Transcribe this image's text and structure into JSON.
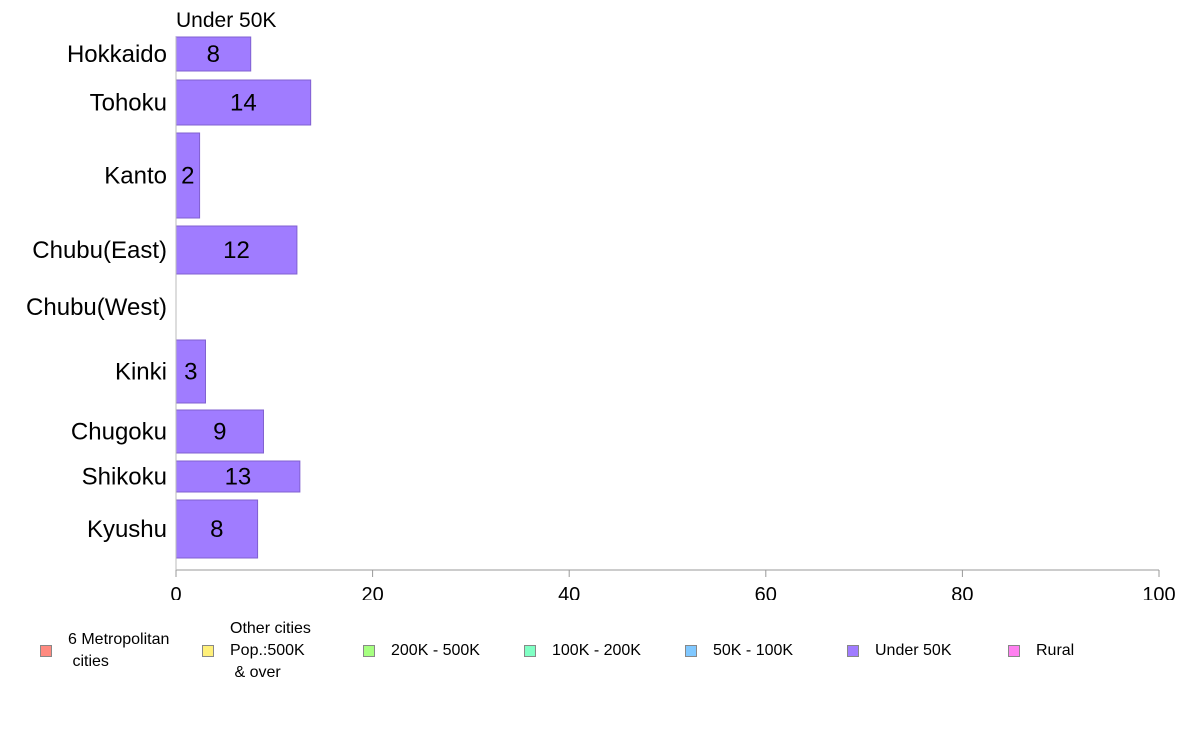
{
  "chart_data": {
    "type": "bar",
    "orientation": "horizontal",
    "series_title": "Under 50K",
    "categories": [
      "Hokkaido",
      "Tohoku",
      "Kanto",
      "Chubu(East)",
      "Chubu(West)",
      "Kinki",
      "Chugoku",
      "Shikoku",
      "Kyushu"
    ],
    "series": [
      {
        "name": "Under 50K",
        "color": "#a07cff",
        "values": [
          7.6,
          13.7,
          2.4,
          12.3,
          0,
          3.0,
          8.9,
          12.6,
          8.3
        ],
        "data_labels": [
          "8",
          "14",
          "2",
          "12",
          "",
          "3",
          "9",
          "13",
          "8"
        ]
      }
    ],
    "xlim": [
      0,
      100
    ],
    "xticks": [
      "0",
      "20",
      "40",
      "60",
      "80",
      "100"
    ],
    "grid": false,
    "legend_position": "bottom",
    "legend": [
      {
        "label": "6 Metropolitan\n cities",
        "color": "#ff8a80"
      },
      {
        "label": "Other cities\nPop.:500K\n & over",
        "color": "#fff07a"
      },
      {
        "label": "200K - 500K",
        "color": "#a6ff80"
      },
      {
        "label": "100K - 200K",
        "color": "#80ffc4"
      },
      {
        "label": "50K - 100K",
        "color": "#80c8ff"
      },
      {
        "label": "Under 50K",
        "color": "#a07cff"
      },
      {
        "label": "Rural",
        "color": "#ff80f0"
      }
    ]
  }
}
